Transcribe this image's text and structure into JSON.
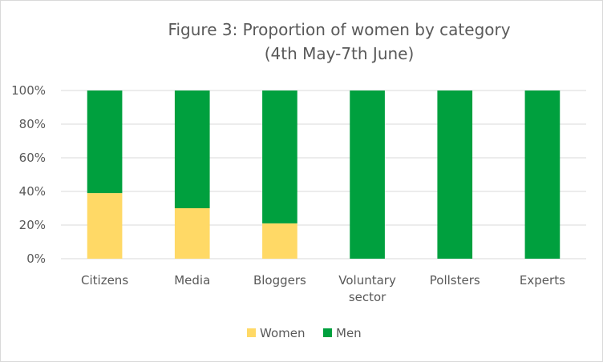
{
  "chart_data": {
    "type": "bar",
    "stacked": true,
    "title_lines": [
      "Figure 3: Proportion of women by category",
      "(4th May-7th June)"
    ],
    "categories": [
      [
        "Citizens"
      ],
      [
        "Media"
      ],
      [
        "Bloggers"
      ],
      [
        "Voluntary",
        "sector"
      ],
      [
        "Pollsters"
      ],
      [
        "Experts"
      ]
    ],
    "series": [
      {
        "name": "Women",
        "color": "#ffd966",
        "values": [
          0.39,
          0.3,
          0.21,
          0,
          0,
          0
        ]
      },
      {
        "name": "Men",
        "color": "#00a03e",
        "values": [
          0.61,
          0.7,
          0.79,
          1,
          1,
          1
        ]
      }
    ],
    "ylim": [
      0,
      1
    ],
    "yticks": [
      "0%",
      "20%",
      "40%",
      "60%",
      "80%",
      "100%"
    ],
    "grid": true,
    "legend_position": "bottom"
  }
}
